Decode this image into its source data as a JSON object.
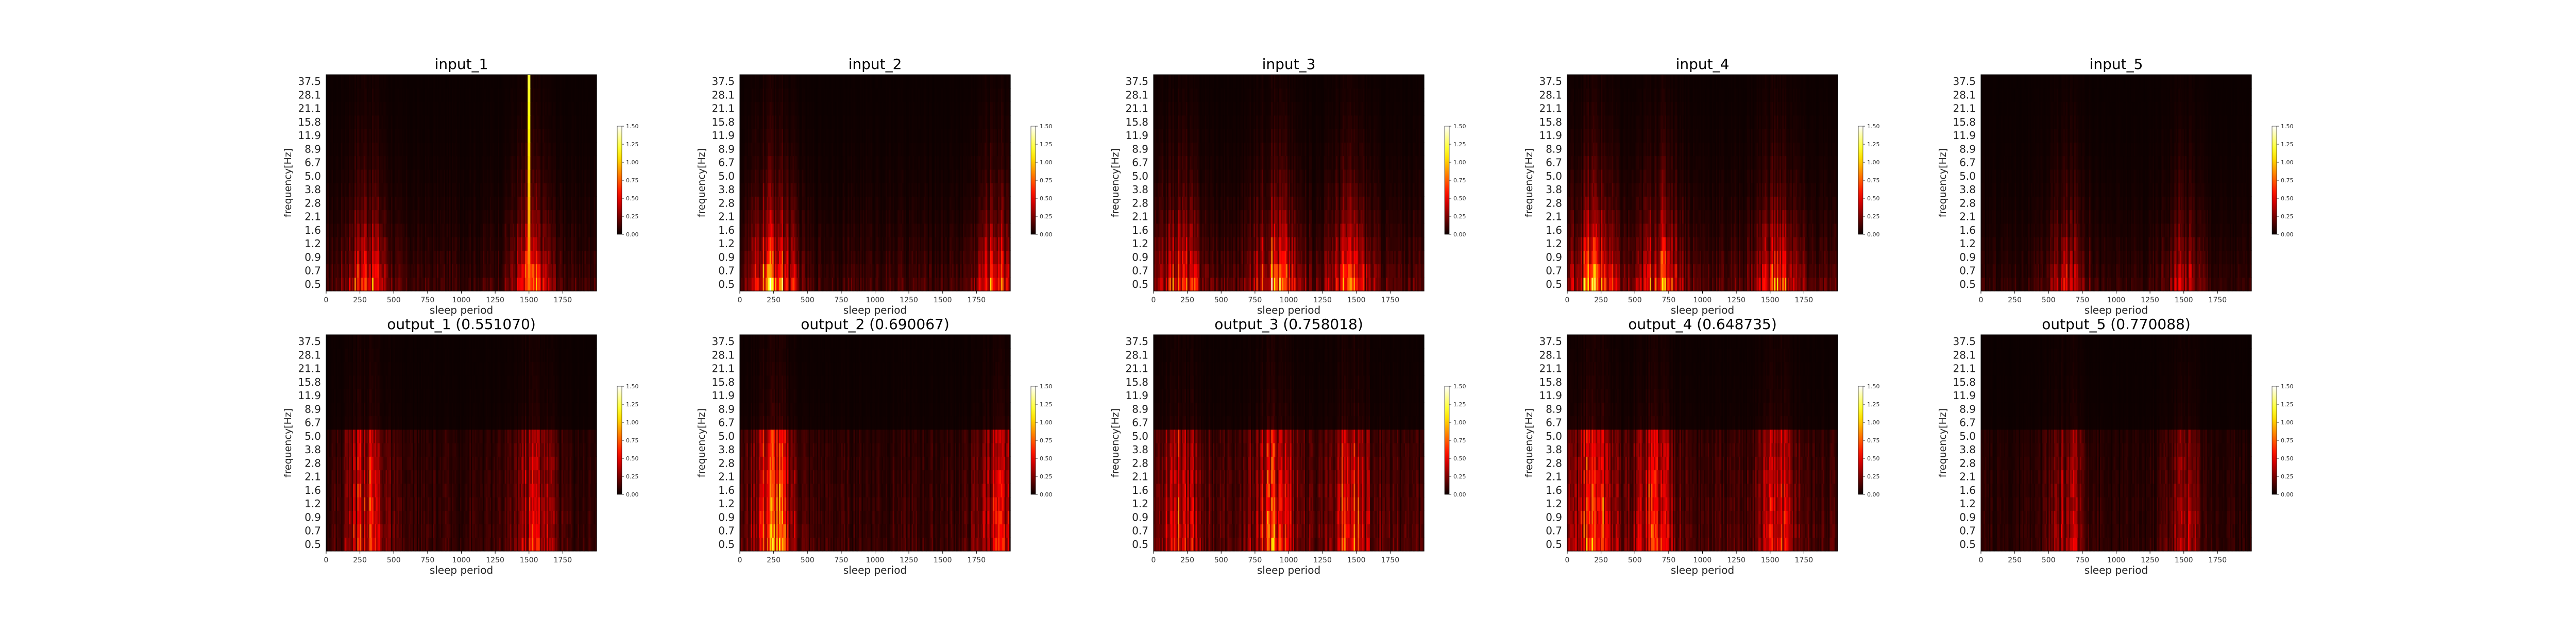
{
  "chart_data": {
    "type": "heatmap",
    "frequency_ticks": [
      "37.5",
      "28.1",
      "21.1",
      "15.8",
      "11.9",
      "8.9",
      "6.7",
      "5.0",
      "3.8",
      "2.8",
      "2.1",
      "1.6",
      "1.2",
      "0.9",
      "0.7",
      "0.5"
    ],
    "x_ticks": [
      "0",
      "250",
      "500",
      "750",
      "1000",
      "1250",
      "1500",
      "1750"
    ],
    "xlabel": "sleep period",
    "ylabel": "frequency[Hz]",
    "x_range": [
      0,
      2000
    ],
    "colorbar": {
      "ticks": [
        "0.00",
        "0.25",
        "0.50",
        "0.75",
        "1.00",
        "1.25",
        "1.50"
      ],
      "range": [
        0,
        1.5
      ],
      "colormap": "hot"
    },
    "panels": [
      {
        "title": "input_1",
        "row": "input",
        "hot_spots": [
          [
            300,
            0.95
          ],
          [
            1520,
            0.9
          ]
        ],
        "intensity": 0.55,
        "bright_lines": [
          1500
        ]
      },
      {
        "title": "input_2",
        "row": "input",
        "hot_spots": [
          [
            250,
            1.3
          ],
          [
            1900,
            0.9
          ]
        ],
        "intensity": 0.6,
        "bright_lines": []
      },
      {
        "title": "input_3",
        "row": "input",
        "hot_spots": [
          [
            900,
            1.1
          ],
          [
            1450,
            0.9
          ],
          [
            200,
            0.8
          ]
        ],
        "intensity": 0.8,
        "bright_lines": []
      },
      {
        "title": "input_4",
        "row": "input",
        "hot_spots": [
          [
            200,
            1.2
          ],
          [
            700,
            1.0
          ],
          [
            1550,
            0.9
          ]
        ],
        "intensity": 0.75,
        "bright_lines": []
      },
      {
        "title": "input_5",
        "row": "input",
        "hot_spots": [
          [
            650,
            0.6
          ],
          [
            1500,
            0.55
          ]
        ],
        "intensity": 0.4,
        "bright_lines": []
      },
      {
        "title": "output_1 (0.551070)",
        "row": "output",
        "hot_spots": [
          [
            300,
            0.9
          ],
          [
            1550,
            0.75
          ]
        ],
        "intensity": 0.55,
        "bright_lines": []
      },
      {
        "title": "output_2 (0.690067)",
        "row": "output",
        "hot_spots": [
          [
            250,
            1.2
          ],
          [
            1900,
            0.7
          ]
        ],
        "intensity": 0.6,
        "bright_lines": []
      },
      {
        "title": "output_3 (0.758018)",
        "row": "output",
        "hot_spots": [
          [
            900,
            0.95
          ],
          [
            1450,
            0.85
          ],
          [
            200,
            0.8
          ]
        ],
        "intensity": 0.8,
        "bright_lines": []
      },
      {
        "title": "output_4 (0.648735)",
        "row": "output",
        "hot_spots": [
          [
            200,
            1.1
          ],
          [
            650,
            0.9
          ],
          [
            1550,
            0.7
          ]
        ],
        "intensity": 0.7,
        "bright_lines": []
      },
      {
        "title": "output_5 (0.770088)",
        "row": "output",
        "hot_spots": [
          [
            650,
            0.55
          ],
          [
            1500,
            0.5
          ]
        ],
        "intensity": 0.4,
        "bright_lines": []
      }
    ]
  }
}
